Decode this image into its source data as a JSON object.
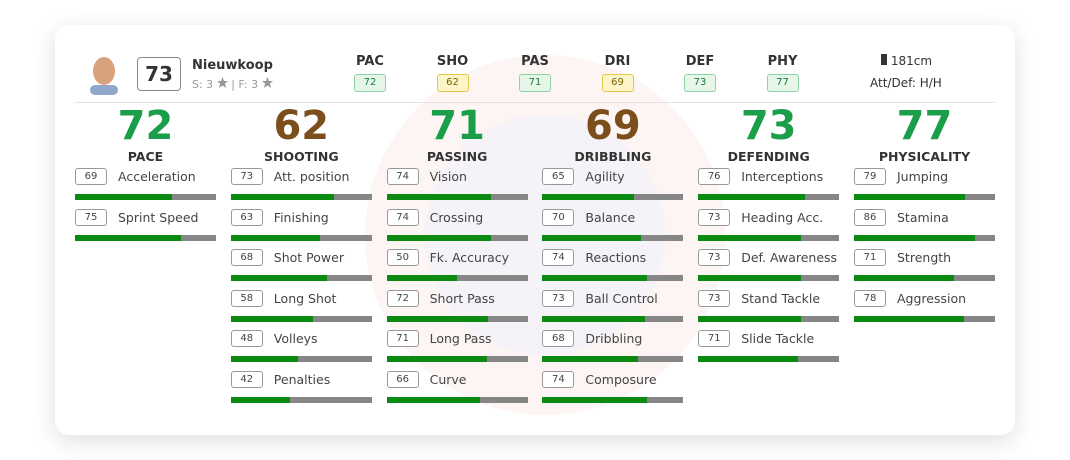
{
  "player": {
    "name": "Nieuwkoop",
    "rating": 73,
    "skills": "S: 3",
    "weak_foot": "| F: 3",
    "height": "181cm",
    "work_rates": "Att/Def: H/H"
  },
  "summary": [
    {
      "label": "PAC",
      "value": 72,
      "color": "green"
    },
    {
      "label": "SHO",
      "value": 62,
      "color": "yellow"
    },
    {
      "label": "PAS",
      "value": 71,
      "color": "green"
    },
    {
      "label": "DRI",
      "value": 69,
      "color": "yellow"
    },
    {
      "label": "DEF",
      "value": 73,
      "color": "green"
    },
    {
      "label": "PHY",
      "value": 77,
      "color": "green"
    }
  ],
  "categories": [
    {
      "name": "PACE",
      "value": 72,
      "color": "#1a9e4a",
      "stats": [
        {
          "name": "Acceleration",
          "value": 69
        },
        {
          "name": "Sprint Speed",
          "value": 75
        }
      ]
    },
    {
      "name": "SHOOTING",
      "value": 62,
      "color": "#7b4f1c",
      "stats": [
        {
          "name": "Att. position",
          "value": 73
        },
        {
          "name": "Finishing",
          "value": 63
        },
        {
          "name": "Shot Power",
          "value": 68
        },
        {
          "name": "Long Shot",
          "value": 58
        },
        {
          "name": "Volleys",
          "value": 48
        },
        {
          "name": "Penalties",
          "value": 42
        }
      ]
    },
    {
      "name": "PASSING",
      "value": 71,
      "color": "#1a9e4a",
      "stats": [
        {
          "name": "Vision",
          "value": 74
        },
        {
          "name": "Crossing",
          "value": 74
        },
        {
          "name": "Fk. Accuracy",
          "value": 50
        },
        {
          "name": "Short Pass",
          "value": 72
        },
        {
          "name": "Long Pass",
          "value": 71
        },
        {
          "name": "Curve",
          "value": 66
        }
      ]
    },
    {
      "name": "DRIBBLING",
      "value": 69,
      "color": "#7b4f1c",
      "stats": [
        {
          "name": "Agility",
          "value": 65
        },
        {
          "name": "Balance",
          "value": 70
        },
        {
          "name": "Reactions",
          "value": 74
        },
        {
          "name": "Ball Control",
          "value": 73
        },
        {
          "name": "Dribbling",
          "value": 68
        },
        {
          "name": "Composure",
          "value": 74
        }
      ]
    },
    {
      "name": "DEFENDING",
      "value": 73,
      "color": "#1a9e4a",
      "stats": [
        {
          "name": "Interceptions",
          "value": 76
        },
        {
          "name": "Heading Acc.",
          "value": 73
        },
        {
          "name": "Def. Awareness",
          "value": 73
        },
        {
          "name": "Stand Tackle",
          "value": 73
        },
        {
          "name": "Slide Tackle",
          "value": 71
        }
      ]
    },
    {
      "name": "PHYSICALITY",
      "value": 77,
      "color": "#1a9e4a",
      "stats": [
        {
          "name": "Jumping",
          "value": 79
        },
        {
          "name": "Stamina",
          "value": 86
        },
        {
          "name": "Strength",
          "value": 71
        },
        {
          "name": "Aggression",
          "value": 78
        }
      ]
    }
  ]
}
